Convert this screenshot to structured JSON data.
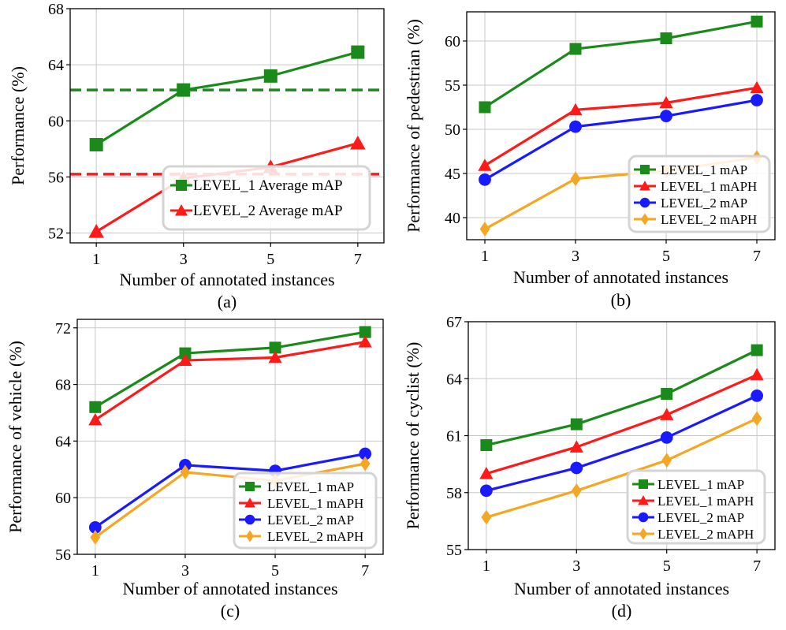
{
  "chart_data": [
    {
      "id": "a",
      "type": "line",
      "caption": "(a)",
      "xlabel": "Number of annotated instances",
      "ylabel": "Performance (%)",
      "x": [
        1,
        3,
        5,
        7
      ],
      "xticks": [
        1,
        3,
        5,
        7
      ],
      "yticks": [
        52,
        56,
        60,
        64,
        68
      ],
      "ylim": [
        51.3,
        68
      ],
      "grid": true,
      "legend_position": "lower-right",
      "series": [
        {
          "name": "LEVEL_1 Average mAP",
          "color": "#1a8a1a",
          "marker": "square",
          "values": [
            58.3,
            62.2,
            63.2,
            64.9
          ]
        },
        {
          "name": "LEVEL_2 Average mAP",
          "color": "#ff1a1a",
          "marker": "triangle",
          "values": [
            52.1,
            55.9,
            56.7,
            58.4
          ]
        }
      ],
      "hlines": [
        {
          "value": 62.2,
          "color": "#1a8a1a",
          "style": "dashed"
        },
        {
          "value": 56.2,
          "color": "#ff1a1a",
          "style": "dashed"
        }
      ]
    },
    {
      "id": "b",
      "type": "line",
      "caption": "(b)",
      "xlabel": "Number of annotated instances",
      "ylabel": "Performance of pedestrian (%)",
      "x": [
        1,
        3,
        5,
        7
      ],
      "xticks": [
        1,
        3,
        5,
        7
      ],
      "yticks": [
        40,
        45,
        50,
        55,
        60
      ],
      "ylim": [
        37.5,
        63.3
      ],
      "grid": true,
      "legend_position": "lower-right",
      "series": [
        {
          "name": "LEVEL_1  mAP",
          "color": "#1a8a1a",
          "marker": "square",
          "values": [
            52.5,
            59.1,
            60.3,
            62.2
          ]
        },
        {
          "name": "LEVEL_1  mAPH",
          "color": "#ff1a1a",
          "marker": "triangle",
          "values": [
            45.9,
            52.2,
            53.0,
            54.7
          ]
        },
        {
          "name": "LEVEL_2  mAP",
          "color": "#1a1aff",
          "marker": "circle",
          "values": [
            44.3,
            50.3,
            51.5,
            53.3
          ]
        },
        {
          "name": "LEVEL_2  mAPH",
          "color": "#f5a623",
          "marker": "diamond",
          "values": [
            38.7,
            44.4,
            45.3,
            46.8
          ]
        }
      ]
    },
    {
      "id": "c",
      "type": "line",
      "caption": "(c)",
      "xlabel": "Number of annotated instances",
      "ylabel": "Performance of vehicle (%)",
      "x": [
        1,
        3,
        5,
        7
      ],
      "xticks": [
        1,
        3,
        5,
        7
      ],
      "yticks": [
        56,
        60,
        64,
        68,
        72
      ],
      "ylim": [
        56,
        72.6
      ],
      "grid": true,
      "legend_position": "lower-right",
      "series": [
        {
          "name": "LEVEL_1  mAP",
          "color": "#1a8a1a",
          "marker": "square",
          "values": [
            66.4,
            70.2,
            70.6,
            71.7
          ]
        },
        {
          "name": "LEVEL_1  mAPH",
          "color": "#ff1a1a",
          "marker": "triangle",
          "values": [
            65.5,
            69.7,
            69.9,
            71.0
          ]
        },
        {
          "name": "LEVEL_2  mAP",
          "color": "#1a1aff",
          "marker": "circle",
          "values": [
            57.9,
            62.3,
            61.9,
            63.1
          ]
        },
        {
          "name": "LEVEL_2  mAPH",
          "color": "#f5a623",
          "marker": "diamond",
          "values": [
            57.2,
            61.8,
            61.2,
            62.4
          ]
        }
      ]
    },
    {
      "id": "d",
      "type": "line",
      "caption": "(d)",
      "xlabel": "Number of annotated instances",
      "ylabel": "Performance of cyclist  (%)",
      "x": [
        1,
        3,
        5,
        7
      ],
      "xticks": [
        1,
        3,
        5,
        7
      ],
      "yticks": [
        55,
        58,
        61,
        64,
        67
      ],
      "ylim": [
        55,
        67
      ],
      "grid": true,
      "legend_position": "lower-right",
      "series": [
        {
          "name": "LEVEL_1  mAP",
          "color": "#1a8a1a",
          "marker": "square",
          "values": [
            60.5,
            61.6,
            63.2,
            65.5
          ]
        },
        {
          "name": "LEVEL_1  mAPH",
          "color": "#ff1a1a",
          "marker": "triangle",
          "values": [
            59.0,
            60.4,
            62.1,
            64.2
          ]
        },
        {
          "name": "LEVEL_2  mAP",
          "color": "#1a1aff",
          "marker": "circle",
          "values": [
            58.1,
            59.3,
            60.9,
            63.1
          ]
        },
        {
          "name": "LEVEL_2  mAPH",
          "color": "#f5a623",
          "marker": "diamond",
          "values": [
            56.7,
            58.1,
            59.7,
            61.9
          ]
        }
      ]
    }
  ]
}
